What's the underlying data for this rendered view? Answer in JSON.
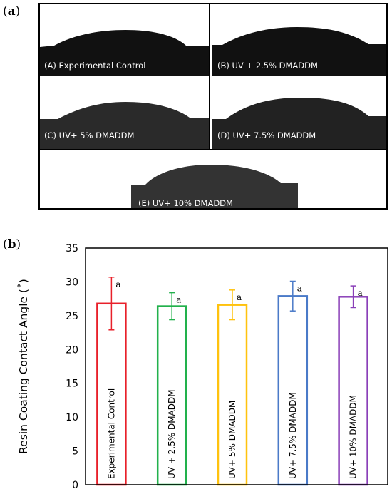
{
  "panel_a": {
    "label_open": "(",
    "label_letter": "a",
    "label_close": ")",
    "captions": [
      "(A) Experimental Control",
      "(B) UV + 2.5% DMADDM",
      "(C) UV+ 5% DMADDM",
      "(D) UV+ 7.5% DMADDM",
      "(E) UV+ 10% DMADDM"
    ]
  },
  "panel_b": {
    "label_open": "(",
    "label_letter": "b",
    "label_close": ")"
  },
  "chart_data": {
    "type": "bar",
    "ylabel": "Resin Coating Contact Angle (˚)",
    "ylim": [
      0,
      35
    ],
    "yticks": [
      0,
      5,
      10,
      15,
      20,
      25,
      30,
      35
    ],
    "categories": [
      "Experimental Control",
      "UV + 2.5% DMADDM",
      "UV+ 5% DMADDM",
      "UV+ 7.5% DMADDM",
      "UV+ 10% DMADDM"
    ],
    "values": [
      26.8,
      26.4,
      26.6,
      27.9,
      27.8
    ],
    "errors": [
      3.9,
      2.0,
      2.2,
      2.2,
      1.6
    ],
    "significance": [
      "a",
      "a",
      "a",
      "a",
      "a"
    ],
    "colors": [
      "#e8202a",
      "#22b14c",
      "#ffc20e",
      "#4a7ac8",
      "#8a3fb8"
    ],
    "bar_fill": "#ffffff",
    "grid": false
  }
}
